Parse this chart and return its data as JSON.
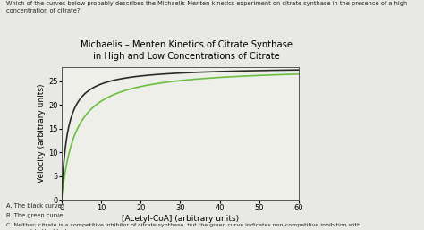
{
  "title_line1": "Michaelis – Menten Kinetics of Citrate Synthase",
  "title_line2": "in High and Low Concentrations of Citrate",
  "xlabel": "[Acetyl-CoA] (arbitrary units)",
  "ylabel": "Velocity (arbitrary units)",
  "xlim": [
    0,
    60
  ],
  "ylim": [
    0,
    28
  ],
  "xticks": [
    0,
    10,
    20,
    30,
    40,
    50,
    60
  ],
  "yticks": [
    0,
    5,
    10,
    15,
    20,
    25
  ],
  "black_vmax": 28.0,
  "black_km": 1.5,
  "green_vmax": 28.0,
  "green_km": 3.5,
  "black_color": "#2a2a2a",
  "green_color": "#6abf40",
  "bg_color": "#e8e8e4",
  "plot_bg": "#efefea",
  "title_fontsize": 7.2,
  "axis_label_fontsize": 6.5,
  "tick_fontsize": 6.0,
  "question_text": "Which of the curves below probably describes the Michaelis-Menten kinetics experiment on citrate synthase in the presence of a high\nconcentration of citrate?",
  "answer_a": "A. The black curve.",
  "answer_b": "B. The green curve.",
  "answer_c": "C. Neither; citrate is a competitive inhibitor of citrate synthase, but the green curve indicates non-competitive inhibition with\n   respect to the black one."
}
